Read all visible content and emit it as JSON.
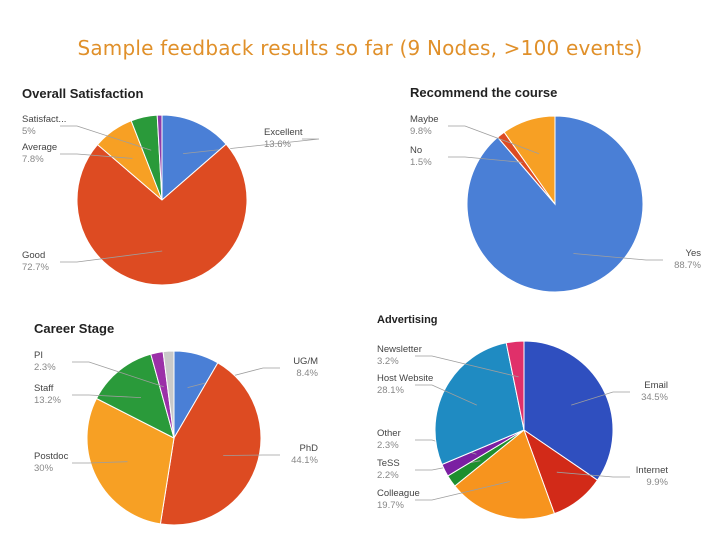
{
  "slide_title": "Sample feedback results so far (9 Nodes, >100 events)",
  "chart_data": [
    {
      "type": "pie",
      "title": "Overall Satisfaction",
      "slices": [
        {
          "name": "Excellent",
          "value": 13.6,
          "label": "Excellent",
          "pct": "13.6%",
          "color": "#4a7fd6"
        },
        {
          "name": "Good",
          "value": 72.7,
          "label": "Good",
          "pct": "72.7%",
          "color": "#dd4b22"
        },
        {
          "name": "Average",
          "value": 7.8,
          "label": "Average",
          "pct": "7.8%",
          "color": "#f7a024"
        },
        {
          "name": "Satisfact...",
          "value": 5,
          "label": "Satisfact...",
          "pct": "5%",
          "color": "#2a9a3a"
        },
        {
          "name": "Other",
          "value": 0.9,
          "label": "",
          "pct": "",
          "color": "#8e3aa8"
        }
      ]
    },
    {
      "type": "pie",
      "title": "Recommend the course",
      "slices": [
        {
          "name": "Yes",
          "value": 88.7,
          "label": "Yes",
          "pct": "88.7%",
          "color": "#4a7fd6"
        },
        {
          "name": "No",
          "value": 1.5,
          "label": "No",
          "pct": "1.5%",
          "color": "#dd4b22"
        },
        {
          "name": "Maybe",
          "value": 9.8,
          "label": "Maybe",
          "pct": "9.8%",
          "color": "#f7a024"
        }
      ]
    },
    {
      "type": "pie",
      "title": "Career Stage",
      "slices": [
        {
          "name": "UG/M",
          "value": 8.4,
          "label": "UG/M",
          "pct": "8.4%",
          "color": "#4a7fd6"
        },
        {
          "name": "PhD",
          "value": 44.1,
          "label": "PhD",
          "pct": "44.1%",
          "color": "#dd4b22"
        },
        {
          "name": "Postdoc",
          "value": 30,
          "label": "Postdoc",
          "pct": "30%",
          "color": "#f7a024"
        },
        {
          "name": "Staff",
          "value": 13.2,
          "label": "Staff",
          "pct": "13.2%",
          "color": "#2a9a3a"
        },
        {
          "name": "PI",
          "value": 2.3,
          "label": "PI",
          "pct": "2.3%",
          "color": "#9b30a8"
        },
        {
          "name": "Other",
          "value": 2.0,
          "label": "",
          "pct": "",
          "color": "#c9c9c9"
        }
      ]
    },
    {
      "type": "pie",
      "title": "Advertising",
      "slices": [
        {
          "name": "Email",
          "value": 34.5,
          "label": "Email",
          "pct": "34.5%",
          "color": "#2f4fbf"
        },
        {
          "name": "Internet",
          "value": 9.9,
          "label": "Internet",
          "pct": "9.9%",
          "color": "#d22a18"
        },
        {
          "name": "Colleague",
          "value": 19.7,
          "label": "Colleague",
          "pct": "19.7%",
          "color": "#f7941e"
        },
        {
          "name": "TeSS",
          "value": 2.2,
          "label": "TeSS",
          "pct": "2.2%",
          "color": "#1e8f2e"
        },
        {
          "name": "Other",
          "value": 2.3,
          "label": "Other",
          "pct": "2.3%",
          "color": "#7b1fa2"
        },
        {
          "name": "Host Website",
          "value": 28.1,
          "label": "Host Website",
          "pct": "28.1%",
          "color": "#1f8bc2"
        },
        {
          "name": "Newsletter",
          "value": 3.2,
          "label": "Newsletter",
          "pct": "3.2%",
          "color": "#e0306a"
        }
      ]
    }
  ]
}
